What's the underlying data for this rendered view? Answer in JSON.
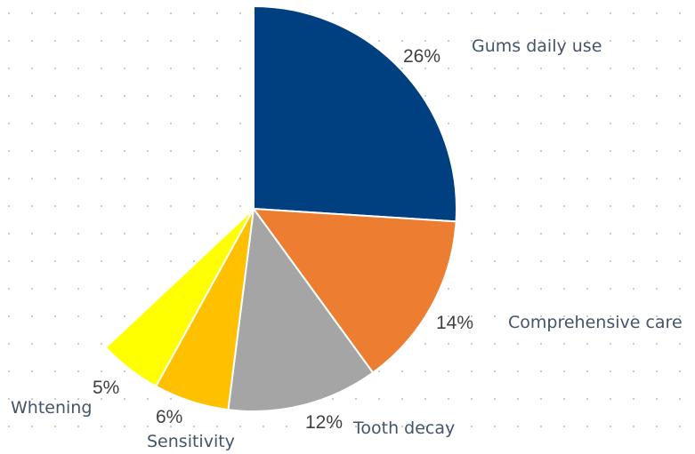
{
  "chart_data": {
    "type": "pie",
    "title": "",
    "slices": [
      {
        "label": "Gums daily use",
        "value": 26,
        "value_label": "26%",
        "color": "#004080"
      },
      {
        "label": "Comprehensive care",
        "value": 14,
        "value_label": "14%",
        "color": "#ed7d31"
      },
      {
        "label": "Tooth decay",
        "value": 12,
        "value_label": "12%",
        "color": "#a5a5a5"
      },
      {
        "label": "Sensitivity",
        "value": 6,
        "value_label": "6%",
        "color": "#ffc000"
      },
      {
        "label": "Whtening",
        "value": 5,
        "value_label": "5%",
        "color": "#ffff00"
      }
    ],
    "start_angle_deg": 0,
    "direction": "clockwise",
    "legend": "none",
    "background": "dotted-grid"
  }
}
